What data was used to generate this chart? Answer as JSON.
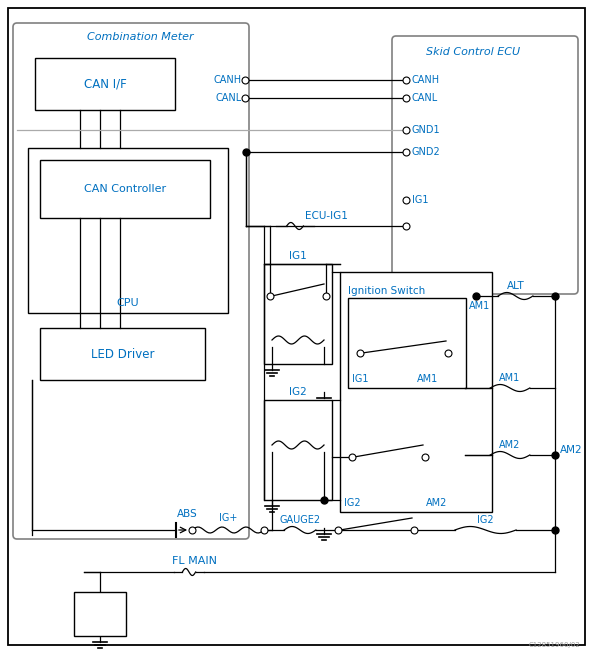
{
  "bg": "#ffffff",
  "blue": "#0070C0",
  "black": "#000000",
  "gray_line": "#AAAAAA",
  "gray_box": "#808080",
  "combination_meter": "Combination Meter",
  "skid_control_ecu": "Skid Control ECU",
  "can_if": "CAN I/F",
  "can_controller": "CAN Controller",
  "cpu": "CPU",
  "led_driver": "LED Driver",
  "abs": "ABS",
  "ig_plus": "IG+",
  "gauge2": "GAUGE2",
  "fl_main": "FL MAIN",
  "ignition_switch": "Ignition Switch",
  "ig1": "IG1",
  "ig2": "IG2",
  "ecu_ig1": "ECU-IG1",
  "alt": "ALT",
  "am1": "AM1",
  "am2": "AM2",
  "canh": "CANH",
  "canl": "CANL",
  "gnd1": "GND1",
  "gnd2": "GND2",
  "watermark": "C12851960/02"
}
